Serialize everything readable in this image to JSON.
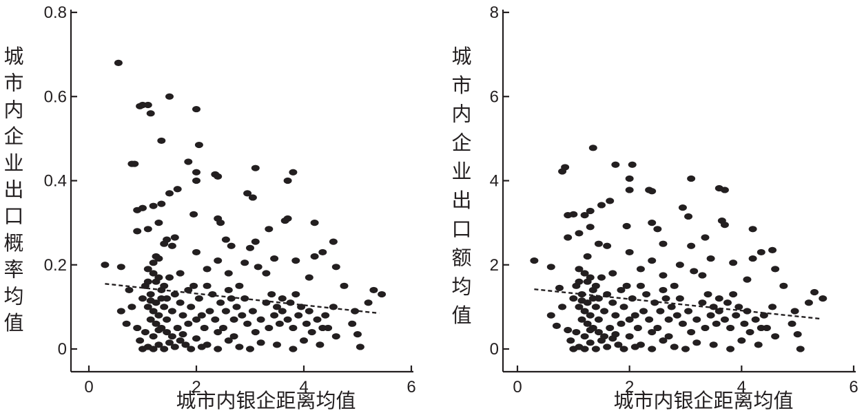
{
  "chart_data": [
    {
      "type": "scatter",
      "xlabel": "城市内银企距离均值",
      "ylabel": "城市内企业出口概率均值",
      "xlim": [
        -0.4,
        6.4
      ],
      "ylim": [
        0,
        0.8
      ],
      "x_ticks": [
        0,
        2,
        4,
        6
      ],
      "y_ticks": [
        0,
        0.2,
        0.4,
        0.6,
        0.8
      ],
      "x_tick_labels": [
        "0",
        "2",
        "4",
        "6"
      ],
      "y_tick_labels": [
        "0",
        "0.2",
        "0.4",
        "0.6",
        "0.8"
      ],
      "trend_line": {
        "x": [
          0.3,
          5.4
        ],
        "y": [
          0.155,
          0.085
        ],
        "style": "dashed"
      },
      "points": [
        [
          0.55,
          0.68
        ],
        [
          1.0,
          0.58
        ],
        [
          1.1,
          0.58
        ],
        [
          0.95,
          0.577
        ],
        [
          1.15,
          0.56
        ],
        [
          1.5,
          0.6
        ],
        [
          2.0,
          0.57
        ],
        [
          1.35,
          0.495
        ],
        [
          2.05,
          0.485
        ],
        [
          0.8,
          0.44
        ],
        [
          0.85,
          0.44
        ],
        [
          1.85,
          0.445
        ],
        [
          2.0,
          0.42
        ],
        [
          2.35,
          0.415
        ],
        [
          2.4,
          0.41
        ],
        [
          3.1,
          0.43
        ],
        [
          3.8,
          0.42
        ],
        [
          3.7,
          0.4
        ],
        [
          2.0,
          0.4
        ],
        [
          1.65,
          0.38
        ],
        [
          1.5,
          0.37
        ],
        [
          2.95,
          0.37
        ],
        [
          3.05,
          0.36
        ],
        [
          1.35,
          0.345
        ],
        [
          1.2,
          0.34
        ],
        [
          0.9,
          0.33
        ],
        [
          1.0,
          0.335
        ],
        [
          1.95,
          0.32
        ],
        [
          2.4,
          0.31
        ],
        [
          3.7,
          0.31
        ],
        [
          3.65,
          0.305
        ],
        [
          4.2,
          0.3
        ],
        [
          2.45,
          0.3
        ],
        [
          1.3,
          0.3
        ],
        [
          1.1,
          0.285
        ],
        [
          3.35,
          0.285
        ],
        [
          0.9,
          0.28
        ],
        [
          1.45,
          0.26
        ],
        [
          1.6,
          0.265
        ],
        [
          2.55,
          0.26
        ],
        [
          3.1,
          0.255
        ],
        [
          4.55,
          0.255
        ],
        [
          1.4,
          0.25
        ],
        [
          1.55,
          0.245
        ],
        [
          2.65,
          0.245
        ],
        [
          3.0,
          0.24
        ],
        [
          4.35,
          0.23
        ],
        [
          2.0,
          0.23
        ],
        [
          1.25,
          0.22
        ],
        [
          1.3,
          0.215
        ],
        [
          3.45,
          0.215
        ],
        [
          2.4,
          0.21
        ],
        [
          3.85,
          0.21
        ],
        [
          4.2,
          0.22
        ],
        [
          2.9,
          0.205
        ],
        [
          1.2,
          0.205
        ],
        [
          0.3,
          0.2
        ],
        [
          0.6,
          0.195
        ],
        [
          1.1,
          0.19
        ],
        [
          2.2,
          0.19
        ],
        [
          3.15,
          0.195
        ],
        [
          4.6,
          0.195
        ],
        [
          1.7,
          0.18
        ],
        [
          2.6,
          0.18
        ],
        [
          3.3,
          0.18
        ],
        [
          4.1,
          0.17
        ],
        [
          0.75,
          0.14
        ],
        [
          0.6,
          0.09
        ],
        [
          0.8,
          0.1
        ],
        [
          0.7,
          0.06
        ],
        [
          0.9,
          0.05
        ],
        [
          0.95,
          0.02
        ],
        [
          1.0,
          0.0
        ],
        [
          1.1,
          0.005
        ],
        [
          1.2,
          0.0
        ],
        [
          1.3,
          0.01
        ],
        [
          1.4,
          0.0
        ],
        [
          1.5,
          0.015
        ],
        [
          1.6,
          0.005
        ],
        [
          1.7,
          0.02
        ],
        [
          1.8,
          0.01
        ],
        [
          1.9,
          0.0
        ],
        [
          2.0,
          0.025
        ],
        [
          2.1,
          0.005
        ],
        [
          2.2,
          0.01
        ],
        [
          2.4,
          0.0
        ],
        [
          2.6,
          0.02
        ],
        [
          2.8,
          0.005
        ],
        [
          3.0,
          0.0
        ],
        [
          3.2,
          0.015
        ],
        [
          3.5,
          0.01
        ],
        [
          3.8,
          0.0
        ],
        [
          4.0,
          0.02
        ],
        [
          4.3,
          0.01
        ],
        [
          4.6,
          0.03
        ],
        [
          5.05,
          0.005
        ],
        [
          5.0,
          0.035
        ],
        [
          4.9,
          0.06
        ],
        [
          5.2,
          0.11
        ],
        [
          5.3,
          0.14
        ],
        [
          5.45,
          0.13
        ],
        [
          4.95,
          0.09
        ],
        [
          4.75,
          0.15
        ],
        [
          4.55,
          0.1
        ],
        [
          4.45,
          0.05
        ],
        [
          1.05,
          0.15
        ],
        [
          1.15,
          0.13
        ],
        [
          1.25,
          0.16
        ],
        [
          1.35,
          0.14
        ],
        [
          1.45,
          0.12
        ],
        [
          1.1,
          0.1
        ],
        [
          1.2,
          0.09
        ],
        [
          1.3,
          0.08
        ],
        [
          1.4,
          0.1
        ],
        [
          1.15,
          0.07
        ],
        [
          1.25,
          0.06
        ],
        [
          1.35,
          0.05
        ],
        [
          1.05,
          0.04
        ],
        [
          1.2,
          0.03
        ],
        [
          1.3,
          0.045
        ],
        [
          1.45,
          0.07
        ],
        [
          1.55,
          0.09
        ],
        [
          1.6,
          0.13
        ],
        [
          1.7,
          0.11
        ],
        [
          1.75,
          0.08
        ],
        [
          1.85,
          0.06
        ],
        [
          1.9,
          0.1
        ],
        [
          2.05,
          0.12
        ],
        [
          2.1,
          0.08
        ],
        [
          2.15,
          0.05
        ],
        [
          2.25,
          0.09
        ],
        [
          2.3,
          0.13
        ],
        [
          2.35,
          0.07
        ],
        [
          2.45,
          0.11
        ],
        [
          2.5,
          0.05
        ],
        [
          2.55,
          0.09
        ],
        [
          2.65,
          0.12
        ],
        [
          2.7,
          0.07
        ],
        [
          2.75,
          0.1
        ],
        [
          2.85,
          0.08
        ],
        [
          2.9,
          0.12
        ],
        [
          2.95,
          0.06
        ],
        [
          3.05,
          0.09
        ],
        [
          3.1,
          0.04
        ],
        [
          3.2,
          0.07
        ],
        [
          3.3,
          0.11
        ],
        [
          3.35,
          0.05
        ],
        [
          3.45,
          0.08
        ],
        [
          3.5,
          0.1
        ],
        [
          3.55,
          0.06
        ],
        [
          3.6,
          0.09
        ],
        [
          3.7,
          0.07
        ],
        [
          3.75,
          0.11
        ],
        [
          3.8,
          0.05
        ],
        [
          3.9,
          0.08
        ],
        [
          3.95,
          0.1
        ],
        [
          4.05,
          0.06
        ],
        [
          4.1,
          0.09
        ],
        [
          4.15,
          0.04
        ],
        [
          4.25,
          0.07
        ],
        [
          4.35,
          0.05
        ],
        [
          4.4,
          0.08
        ],
        [
          1.0,
          0.12
        ],
        [
          1.1,
          0.16
        ],
        [
          1.2,
          0.18
        ],
        [
          1.3,
          0.17
        ],
        [
          1.4,
          0.15
        ],
        [
          1.5,
          0.17
        ],
        [
          1.25,
          0.11
        ],
        [
          1.35,
          0.12
        ],
        [
          1.15,
          0.115
        ],
        [
          1.45,
          0.04
        ],
        [
          1.55,
          0.03
        ],
        [
          1.65,
          0.05
        ],
        [
          1.75,
          0.035
        ],
        [
          1.85,
          0.14
        ],
        [
          1.95,
          0.15
        ],
        [
          2.2,
          0.15
        ],
        [
          2.6,
          0.14
        ],
        [
          2.8,
          0.15
        ],
        [
          3.4,
          0.13
        ],
        [
          3.6,
          0.12
        ],
        [
          3.85,
          0.13
        ],
        [
          2.0,
          0.07
        ],
        [
          2.4,
          0.04
        ],
        [
          2.7,
          0.03
        ]
      ]
    },
    {
      "type": "scatter",
      "xlabel": "城市内银企距离均值",
      "ylabel": "城市内企业出口额均值",
      "xlim": [
        -0.4,
        6.4
      ],
      "ylim": [
        0,
        8
      ],
      "x_ticks": [
        0,
        2,
        4,
        6
      ],
      "y_ticks": [
        0,
        2,
        4,
        6,
        8
      ],
      "x_tick_labels": [
        "0",
        "2",
        "4",
        "6"
      ],
      "y_tick_labels": [
        "0",
        "2",
        "4",
        "6",
        "8"
      ],
      "trend_line": {
        "x": [
          0.3,
          5.4
        ],
        "y": [
          1.42,
          0.72
        ],
        "style": "dashed"
      },
      "points": [
        [
          1.35,
          4.78
        ],
        [
          0.8,
          4.22
        ],
        [
          0.85,
          4.32
        ],
        [
          1.75,
          4.38
        ],
        [
          2.05,
          4.38
        ],
        [
          2.0,
          4.05
        ],
        [
          2.35,
          3.78
        ],
        [
          2.4,
          3.75
        ],
        [
          3.1,
          4.05
        ],
        [
          3.6,
          3.82
        ],
        [
          3.7,
          3.78
        ],
        [
          2.0,
          3.78
        ],
        [
          1.65,
          3.52
        ],
        [
          1.5,
          3.42
        ],
        [
          2.95,
          3.36
        ],
        [
          3.05,
          3.15
        ],
        [
          1.3,
          3.28
        ],
        [
          1.2,
          3.18
        ],
        [
          0.9,
          3.18
        ],
        [
          1.0,
          3.2
        ],
        [
          1.95,
          2.92
        ],
        [
          2.4,
          3.0
        ],
        [
          3.65,
          3.05
        ],
        [
          3.7,
          2.95
        ],
        [
          4.2,
          2.85
        ],
        [
          2.5,
          2.85
        ],
        [
          1.3,
          2.9
        ],
        [
          1.1,
          2.75
        ],
        [
          3.35,
          2.65
        ],
        [
          0.9,
          2.65
        ],
        [
          1.45,
          2.5
        ],
        [
          1.6,
          2.45
        ],
        [
          2.6,
          2.5
        ],
        [
          3.1,
          2.45
        ],
        [
          4.55,
          2.35
        ],
        [
          4.35,
          2.3
        ],
        [
          2.0,
          2.3
        ],
        [
          1.25,
          2.2
        ],
        [
          3.45,
          2.15
        ],
        [
          2.4,
          2.1
        ],
        [
          3.85,
          2.05
        ],
        [
          4.2,
          2.15
        ],
        [
          2.9,
          2.0
        ],
        [
          0.3,
          2.1
        ],
        [
          0.6,
          1.95
        ],
        [
          1.1,
          1.9
        ],
        [
          2.2,
          1.9
        ],
        [
          3.15,
          1.85
        ],
        [
          4.6,
          1.9
        ],
        [
          1.7,
          1.8
        ],
        [
          2.6,
          1.75
        ],
        [
          3.3,
          1.75
        ],
        [
          4.1,
          1.65
        ],
        [
          0.75,
          1.45
        ],
        [
          0.6,
          0.8
        ],
        [
          0.8,
          1.0
        ],
        [
          0.7,
          0.55
        ],
        [
          0.9,
          0.45
        ],
        [
          0.95,
          0.2
        ],
        [
          1.0,
          0.0
        ],
        [
          1.1,
          0.05
        ],
        [
          1.2,
          0.0
        ],
        [
          1.3,
          0.15
        ],
        [
          1.4,
          0.0
        ],
        [
          1.5,
          0.2
        ],
        [
          1.6,
          0.05
        ],
        [
          1.7,
          0.25
        ],
        [
          1.8,
          0.1
        ],
        [
          1.9,
          0.0
        ],
        [
          2.0,
          0.3
        ],
        [
          2.1,
          0.05
        ],
        [
          2.2,
          0.1
        ],
        [
          2.4,
          0.0
        ],
        [
          2.6,
          0.2
        ],
        [
          2.8,
          0.05
        ],
        [
          3.0,
          0.0
        ],
        [
          3.2,
          0.15
        ],
        [
          3.5,
          0.1
        ],
        [
          3.8,
          0.0
        ],
        [
          4.0,
          0.2
        ],
        [
          4.3,
          0.1
        ],
        [
          4.6,
          0.3
        ],
        [
          5.05,
          0.0
        ],
        [
          5.0,
          0.35
        ],
        [
          4.9,
          0.6
        ],
        [
          5.2,
          1.1
        ],
        [
          5.3,
          1.35
        ],
        [
          5.45,
          1.2
        ],
        [
          4.95,
          0.9
        ],
        [
          4.75,
          1.5
        ],
        [
          4.55,
          1.0
        ],
        [
          4.45,
          0.5
        ],
        [
          1.05,
          1.5
        ],
        [
          1.15,
          1.3
        ],
        [
          1.25,
          1.6
        ],
        [
          1.35,
          1.4
        ],
        [
          1.45,
          1.2
        ],
        [
          1.1,
          1.0
        ],
        [
          1.2,
          0.9
        ],
        [
          1.3,
          0.8
        ],
        [
          1.4,
          1.0
        ],
        [
          1.15,
          0.7
        ],
        [
          1.25,
          0.6
        ],
        [
          1.35,
          0.5
        ],
        [
          1.05,
          0.4
        ],
        [
          1.2,
          0.3
        ],
        [
          1.3,
          0.45
        ],
        [
          1.45,
          0.7
        ],
        [
          1.55,
          0.9
        ],
        [
          1.6,
          1.3
        ],
        [
          1.7,
          1.1
        ],
        [
          1.75,
          0.8
        ],
        [
          1.85,
          0.6
        ],
        [
          1.9,
          1.0
        ],
        [
          2.05,
          1.2
        ],
        [
          2.1,
          0.8
        ],
        [
          2.15,
          0.5
        ],
        [
          2.25,
          0.9
        ],
        [
          2.3,
          1.3
        ],
        [
          2.35,
          0.7
        ],
        [
          2.45,
          1.1
        ],
        [
          2.5,
          0.5
        ],
        [
          2.55,
          0.9
        ],
        [
          2.65,
          1.2
        ],
        [
          2.7,
          0.7
        ],
        [
          2.75,
          1.0
        ],
        [
          2.85,
          0.8
        ],
        [
          2.9,
          1.2
        ],
        [
          2.95,
          0.6
        ],
        [
          3.05,
          0.9
        ],
        [
          3.1,
          0.4
        ],
        [
          3.2,
          0.7
        ],
        [
          3.3,
          1.1
        ],
        [
          3.35,
          0.5
        ],
        [
          3.45,
          0.8
        ],
        [
          3.5,
          1.0
        ],
        [
          3.55,
          0.6
        ],
        [
          3.6,
          0.9
        ],
        [
          3.7,
          0.7
        ],
        [
          3.75,
          1.1
        ],
        [
          3.8,
          0.5
        ],
        [
          3.9,
          0.8
        ],
        [
          3.95,
          1.0
        ],
        [
          4.05,
          0.6
        ],
        [
          4.1,
          0.9
        ],
        [
          4.15,
          0.4
        ],
        [
          4.25,
          0.7
        ],
        [
          4.35,
          0.5
        ],
        [
          4.4,
          0.8
        ],
        [
          1.0,
          1.2
        ],
        [
          1.1,
          1.6
        ],
        [
          1.2,
          1.8
        ],
        [
          1.3,
          1.7
        ],
        [
          1.4,
          1.5
        ],
        [
          1.5,
          1.7
        ],
        [
          1.25,
          1.1
        ],
        [
          1.35,
          1.2
        ],
        [
          1.15,
          1.15
        ],
        [
          1.45,
          0.4
        ],
        [
          1.55,
          0.3
        ],
        [
          1.65,
          0.5
        ],
        [
          1.75,
          0.35
        ],
        [
          1.85,
          1.4
        ],
        [
          1.95,
          1.5
        ],
        [
          2.2,
          1.5
        ],
        [
          2.6,
          1.4
        ],
        [
          2.8,
          1.5
        ],
        [
          3.4,
          1.3
        ],
        [
          3.6,
          1.2
        ],
        [
          3.85,
          1.3
        ],
        [
          2.0,
          0.7
        ],
        [
          2.4,
          0.4
        ],
        [
          2.7,
          0.3
        ]
      ]
    }
  ]
}
